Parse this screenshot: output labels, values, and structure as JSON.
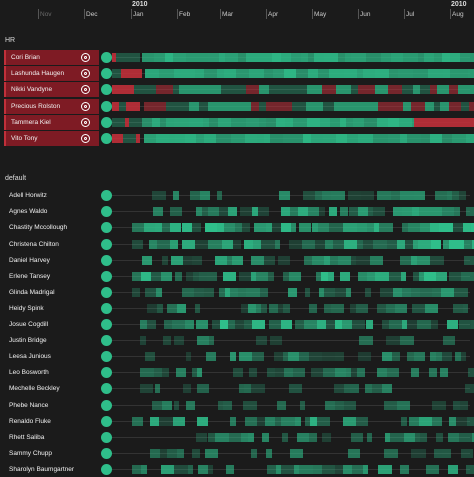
{
  "timeline": {
    "years": [
      {
        "label": "2010",
        "month_index": 2
      },
      {
        "label": "2010",
        "month_index": 9
      }
    ],
    "months": [
      {
        "label": "Nov",
        "dim": true
      },
      {
        "label": "Dec",
        "dim": false
      },
      {
        "label": "Jan",
        "dim": false
      },
      {
        "label": "Feb",
        "dim": false
      },
      {
        "label": "Mar",
        "dim": false
      },
      {
        "label": "Apr",
        "dim": false
      },
      {
        "label": "May",
        "dim": false
      },
      {
        "label": "Jun",
        "dim": false
      },
      {
        "label": "Jul",
        "dim": false
      },
      {
        "label": "Aug",
        "dim": false
      }
    ]
  },
  "groups": [
    {
      "label": "HR",
      "kind": "hr",
      "people": [
        {
          "name": "Cori Brian",
          "pattern": "hr1"
        },
        {
          "name": "Lashunda Haugen",
          "pattern": "hr2"
        },
        {
          "name": "Nikki Vandyne",
          "pattern": "hr3"
        },
        {
          "name": "Precious Rolston",
          "pattern": "hr4"
        },
        {
          "name": "Tammera Kiel",
          "pattern": "hr5"
        },
        {
          "name": "Vito Tony",
          "pattern": "hr6"
        }
      ]
    },
    {
      "label": "default",
      "kind": "default",
      "people": [
        {
          "name": "Adell Horwitz",
          "pattern": "d0"
        },
        {
          "name": "Agnes Waldo",
          "pattern": "d1"
        },
        {
          "name": "Chastity Mccollough",
          "pattern": "d2"
        },
        {
          "name": "Christena Chilton",
          "pattern": "d3"
        },
        {
          "name": "Daniel Harvey",
          "pattern": "d4"
        },
        {
          "name": "Erlene Tansey",
          "pattern": "d5"
        },
        {
          "name": "Glinda Madrigal",
          "pattern": "d6"
        },
        {
          "name": "Heidy Spink",
          "pattern": "d7"
        },
        {
          "name": "Josue Cogdill",
          "pattern": "d8"
        },
        {
          "name": "Justin Bridge",
          "pattern": "d9"
        },
        {
          "name": "Leesa Junious",
          "pattern": "d10"
        },
        {
          "name": "Leo Bosworth",
          "pattern": "d11"
        },
        {
          "name": "Mechelle Beckley",
          "pattern": "d12"
        },
        {
          "name": "Phebe Nance",
          "pattern": "d13"
        },
        {
          "name": "Renaldo Fluke",
          "pattern": "d14"
        },
        {
          "name": "Rhett Saliba",
          "pattern": "d15"
        },
        {
          "name": "Sammy Chupp",
          "pattern": "d16"
        },
        {
          "name": "Sharolyn Baumgartner",
          "pattern": "d17"
        }
      ]
    }
  ],
  "colors": {
    "accent": "#2fbe8a",
    "hr_background": "#7e1b24",
    "hr_bar": "#c0303a",
    "background": "#1b1b1b"
  }
}
